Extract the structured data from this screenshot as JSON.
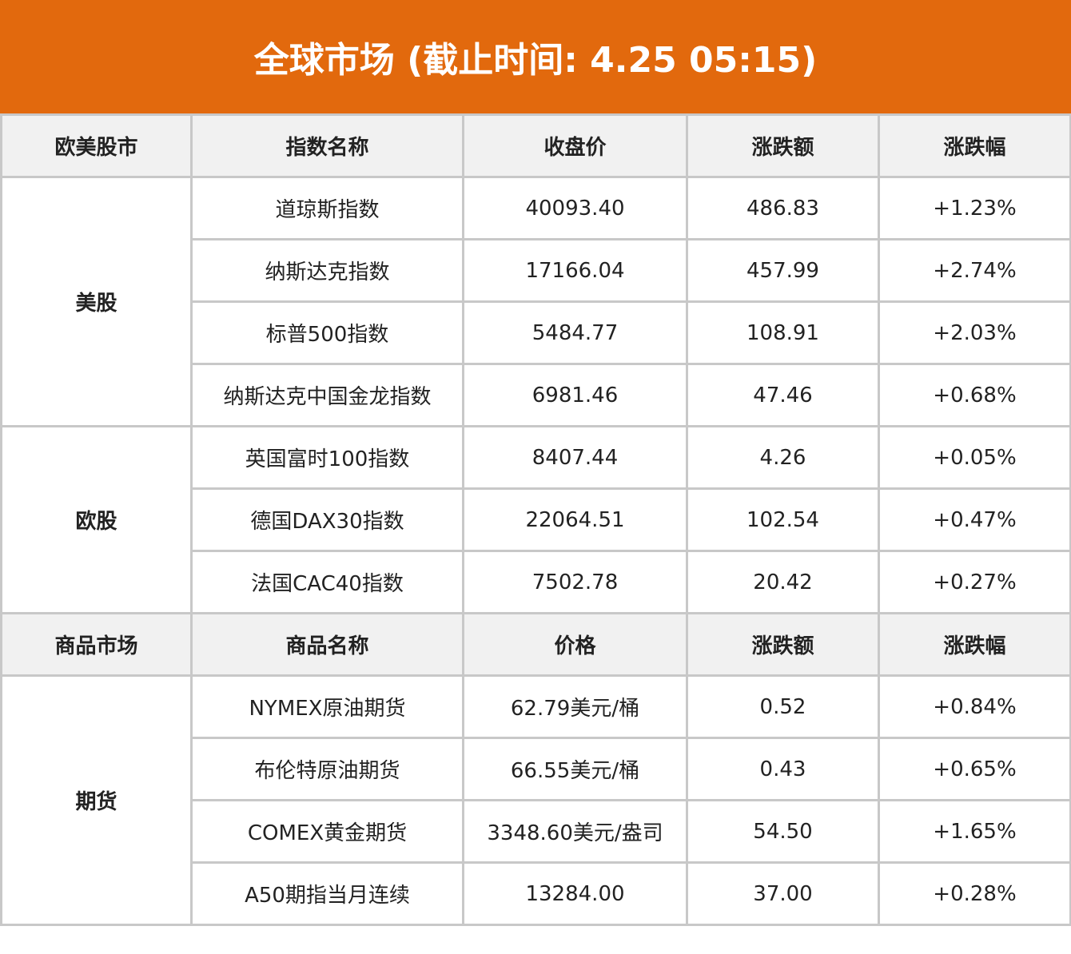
{
  "header": {
    "title": "全球市场 (截止时间: 4.25 05:15)",
    "background": "#e2690d"
  },
  "colors": {
    "positive": "#e8141c",
    "header_bg": "#f1f1f1",
    "border": "#c8c8c8"
  },
  "equities": {
    "columns": [
      "欧美股市",
      "指数名称",
      "收盘价",
      "涨跌额",
      "涨跌幅"
    ],
    "groups": [
      {
        "label": "美股",
        "rows": [
          {
            "name": "道琼斯指数",
            "close": "40093.40",
            "change": "486.83",
            "pct": "+1.23%"
          },
          {
            "name": "纳斯达克指数",
            "close": "17166.04",
            "change": "457.99",
            "pct": "+2.74%"
          },
          {
            "name": "标普500指数",
            "close": "5484.77",
            "change": "108.91",
            "pct": "+2.03%"
          },
          {
            "name": "纳斯达克中国金龙指数",
            "close": "6981.46",
            "change": "47.46",
            "pct": "+0.68%"
          }
        ]
      },
      {
        "label": "欧股",
        "rows": [
          {
            "name": "英国富时100指数",
            "close": "8407.44",
            "change": "4.26",
            "pct": "+0.05%"
          },
          {
            "name": "德国DAX30指数",
            "close": "22064.51",
            "change": "102.54",
            "pct": "+0.47%"
          },
          {
            "name": "法国CAC40指数",
            "close": "7502.78",
            "change": "20.42",
            "pct": "+0.27%"
          }
        ]
      }
    ]
  },
  "commodities": {
    "columns": [
      "商品市场",
      "商品名称",
      "价格",
      "涨跌额",
      "涨跌幅"
    ],
    "groups": [
      {
        "label": "期货",
        "rows": [
          {
            "name": "NYMEX原油期货",
            "close": "62.79美元/桶",
            "change": "0.52",
            "pct": "+0.84%"
          },
          {
            "name": "布伦特原油期货",
            "close": "66.55美元/桶",
            "change": "0.43",
            "pct": "+0.65%"
          },
          {
            "name": "COMEX黄金期货",
            "close": "3348.60美元/盎司",
            "change": "54.50",
            "pct": "+1.65%"
          },
          {
            "name": "A50期指当月连续",
            "close": "13284.00",
            "change": "37.00",
            "pct": "+0.28%"
          }
        ]
      }
    ]
  }
}
